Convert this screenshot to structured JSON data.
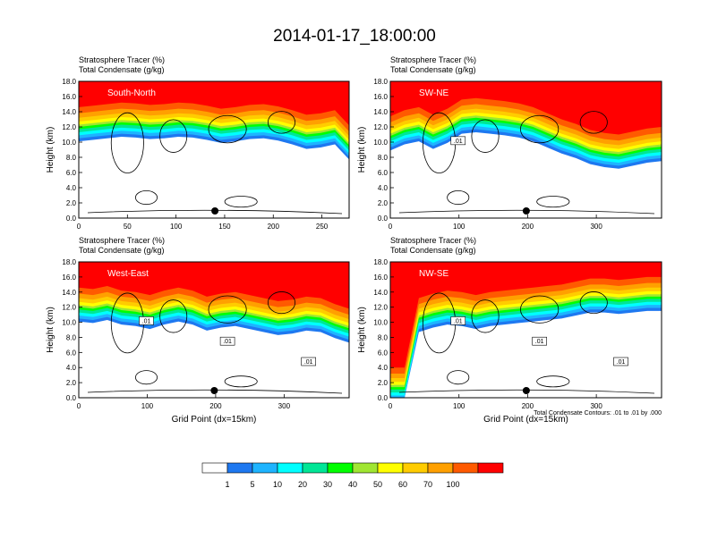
{
  "title": "2014-01-17_18:00:00",
  "colors": {
    "scale": [
      "#ffffff",
      "#1e78f0",
      "#1eb4ff",
      "#00ffff",
      "#00e696",
      "#00ff00",
      "#a0e632",
      "#ffff00",
      "#ffcc00",
      "#ffa000",
      "#ff5a00",
      "#ff0000"
    ],
    "contour": "#000000",
    "frame": "#000000"
  },
  "chart_data": [
    {
      "type": "heatmap",
      "label": "South-North",
      "left_title": [
        "Stratosphere Tracer   (%)",
        "Total Condensate   (g/kg)"
      ],
      "ylabel": "Height (km)",
      "xlabel": "",
      "xlim": [
        0,
        278
      ],
      "ylim": [
        0,
        18
      ],
      "xticks": [
        0,
        50,
        100,
        150,
        200,
        250
      ],
      "yticks": [
        "0.0",
        "2.0",
        "4.0",
        "6.0",
        "8.0",
        "10.0",
        "12.0",
        "14.0",
        "16.0",
        "18.0"
      ],
      "marker_x": 140,
      "tropopause_km": [
        15.6,
        15.8,
        16.0,
        16.2,
        16.1,
        15.9,
        16.0,
        16.2,
        16.1,
        15.8,
        15.4,
        15.6,
        15.9,
        16.0,
        15.7,
        15.2,
        14.6,
        14.8,
        15.2,
        13.2
      ],
      "contour_labels": []
    },
    {
      "type": "heatmap",
      "label": "SW-NE",
      "left_title": [
        "Stratosphere Tracer   (%)",
        "Total Condensate   (g/kg)"
      ],
      "ylabel": "Height (km)",
      "xlabel": "",
      "xlim": [
        0,
        395
      ],
      "ylim": [
        0,
        18
      ],
      "xticks": [
        0,
        100,
        200,
        300
      ],
      "yticks": [
        "0.0",
        "2.0",
        "4.0",
        "6.0",
        "8.0",
        "10.0",
        "12.0",
        "14.0",
        "16.0",
        "18.0"
      ],
      "marker_x": 198,
      "tropopause_km": [
        14.4,
        15.2,
        15.6,
        14.6,
        15.4,
        16.6,
        16.8,
        16.6,
        16.4,
        16.1,
        15.6,
        14.8,
        14.0,
        13.4,
        12.6,
        12.2,
        12.0,
        12.4,
        12.8,
        13.0
      ],
      "contour_labels": [
        ".01"
      ]
    },
    {
      "type": "heatmap",
      "label": "West-East",
      "left_title": [
        "Stratosphere Tracer   (%)",
        "Total Condensate   (g/kg)"
      ],
      "ylabel": "Height (km)",
      "xlabel": "Grid Point (dx=15km)",
      "xlim": [
        0,
        395
      ],
      "ylim": [
        0,
        18
      ],
      "xticks": [
        0,
        100,
        200,
        300
      ],
      "yticks": [
        "0.0",
        "2.0",
        "4.0",
        "6.0",
        "8.0",
        "10.0",
        "12.0",
        "14.0",
        "16.0",
        "18.0"
      ],
      "marker_x": 198,
      "tropopause_km": [
        15.6,
        15.4,
        15.8,
        15.2,
        15.0,
        14.6,
        15.2,
        15.6,
        15.2,
        14.4,
        14.8,
        15.0,
        14.6,
        14.2,
        13.8,
        14.0,
        14.4,
        14.2,
        13.4,
        12.8
      ],
      "contour_labels": [
        ".01",
        ".01",
        ".01"
      ]
    },
    {
      "type": "heatmap",
      "label": "NW-SE",
      "left_title": [
        "Stratosphere Tracer   (%)",
        "Total Condensate   (g/kg)"
      ],
      "ylabel": "Height (km)",
      "xlabel": "Grid Point (dx=15km)",
      "xlim": [
        0,
        395
      ],
      "ylim": [
        0,
        18
      ],
      "xticks": [
        0,
        100,
        200,
        300
      ],
      "yticks": [
        "0.0",
        "2.0",
        "4.0",
        "6.0",
        "8.0",
        "10.0",
        "12.0",
        "14.0",
        "16.0",
        "18.0"
      ],
      "marker_x": 198,
      "tropopause_km": [
        5.0,
        5.0,
        14.2,
        14.8,
        15.2,
        15.0,
        14.6,
        15.0,
        15.2,
        15.4,
        15.6,
        15.8,
        16.0,
        16.4,
        16.8,
        16.8,
        16.6,
        16.8,
        17.0,
        17.0
      ],
      "contour_labels": [
        ".01",
        ".01",
        ".01"
      ],
      "footnote": "Total Condensate Contours: .01 to .01 by .000"
    }
  ],
  "colorbar": {
    "labels": [
      "1",
      "5",
      "10",
      "20",
      "30",
      "40",
      "50",
      "60",
      "70",
      "100"
    ]
  }
}
